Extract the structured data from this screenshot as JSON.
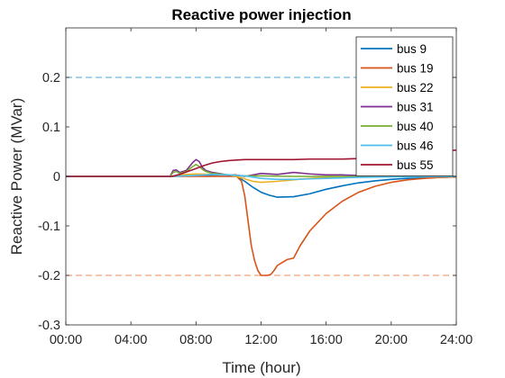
{
  "chart_data": {
    "type": "line",
    "title": "Reactive power injection",
    "xlabel": "Time (hour)",
    "ylabel": "Reactive Power (MVar)",
    "xlim": [
      0,
      24
    ],
    "ylim": [
      -0.3,
      0.3
    ],
    "xticks": [
      0,
      4,
      8,
      12,
      16,
      20,
      24
    ],
    "xtick_labels": [
      "00:00",
      "04:00",
      "08:00",
      "12:00",
      "16:00",
      "20:00",
      "24:00"
    ],
    "yticks": [
      -0.3,
      -0.2,
      -0.1,
      0,
      0.1,
      0.2
    ],
    "ytick_labels": [
      "-0.3",
      "-0.2",
      "-0.1",
      "0",
      "0.1",
      "0.2"
    ],
    "grid": false,
    "legend_position": "top-right",
    "limit_lines": [
      {
        "y": 0.2,
        "color": "#6fb9dc",
        "style": "dashed"
      },
      {
        "y": -0.2,
        "color": "#f2a27a",
        "style": "dashed"
      }
    ],
    "series": [
      {
        "name": "bus 9",
        "color": "#0072bd",
        "x": [
          0,
          6.5,
          8,
          10,
          10.5,
          11,
          11.5,
          12,
          12.5,
          13,
          14,
          15,
          16,
          17,
          18,
          19,
          20,
          21,
          22,
          23,
          24
        ],
        "y": [
          0,
          0,
          0.002,
          0.003,
          0,
          -0.01,
          -0.022,
          -0.032,
          -0.038,
          -0.042,
          -0.041,
          -0.035,
          -0.026,
          -0.019,
          -0.013,
          -0.009,
          -0.006,
          -0.004,
          -0.003,
          -0.002,
          -0.001
        ]
      },
      {
        "name": "bus 19",
        "color": "#d95319",
        "x": [
          0,
          6.5,
          10.5,
          10.8,
          11,
          11.2,
          11.4,
          11.6,
          11.8,
          12,
          12.4,
          12.6,
          12.8,
          13,
          13.4,
          13.6,
          14,
          14.4,
          15,
          16,
          17,
          18,
          19,
          20,
          21,
          22,
          23,
          24
        ],
        "y": [
          0,
          0,
          0,
          -0.01,
          -0.04,
          -0.09,
          -0.14,
          -0.17,
          -0.19,
          -0.2,
          -0.2,
          -0.198,
          -0.19,
          -0.18,
          -0.172,
          -0.168,
          -0.165,
          -0.14,
          -0.11,
          -0.075,
          -0.05,
          -0.032,
          -0.02,
          -0.012,
          -0.007,
          -0.004,
          -0.002,
          -0.001
        ]
      },
      {
        "name": "bus 22",
        "color": "#edb120",
        "x": [
          0,
          6.5,
          7,
          8,
          9,
          10,
          10.5,
          11,
          11.5,
          12,
          13,
          14,
          15,
          16,
          20,
          24
        ],
        "y": [
          0,
          0,
          0.003,
          0.005,
          0.004,
          0.003,
          0,
          -0.005,
          -0.01,
          -0.012,
          -0.01,
          -0.007,
          -0.004,
          -0.002,
          0,
          0
        ]
      },
      {
        "name": "bus 31",
        "color": "#7e2f8e",
        "x": [
          0,
          6.4,
          6.6,
          6.8,
          7,
          7.4,
          7.6,
          7.8,
          8,
          8.2,
          8.4,
          8.6,
          9,
          9.6,
          10,
          10.4,
          10.6,
          11,
          12,
          13,
          14,
          15,
          16,
          17,
          18,
          19,
          24
        ],
        "y": [
          0,
          0,
          0.012,
          0.013,
          0.008,
          0.012,
          0.02,
          0.028,
          0.034,
          0.03,
          0.018,
          0.012,
          0.008,
          0.005,
          0.002,
          0.003,
          0.002,
          0,
          0.006,
          0.004,
          0.008,
          0.005,
          0.003,
          0.003,
          0.002,
          0.003,
          0
        ]
      },
      {
        "name": "bus 40",
        "color": "#77ac30",
        "x": [
          0,
          6.4,
          6.6,
          6.8,
          7,
          7.4,
          7.6,
          7.8,
          8,
          8.2,
          8.4,
          8.6,
          9,
          10,
          10.5,
          11,
          12,
          14,
          16,
          20,
          24
        ],
        "y": [
          0,
          0,
          0.008,
          0.01,
          0.006,
          0.01,
          0.015,
          0.02,
          0.024,
          0.02,
          0.014,
          0.01,
          0.006,
          0.003,
          0.002,
          0.001,
          0.001,
          0,
          0,
          0,
          0
        ]
      },
      {
        "name": "bus 46",
        "color": "#4dbeee",
        "x": [
          0,
          6.5,
          8,
          9,
          10,
          11,
          12,
          13,
          14,
          15,
          16,
          17,
          18,
          20,
          24
        ],
        "y": [
          0,
          0,
          0.002,
          0.004,
          0.003,
          0.001,
          -0.004,
          -0.006,
          -0.006,
          -0.005,
          -0.004,
          -0.003,
          -0.002,
          -0.001,
          0
        ]
      },
      {
        "name": "bus 55",
        "color": "#a2142f",
        "x": [
          0,
          6.5,
          7,
          7.5,
          8,
          8.5,
          9,
          9.5,
          10,
          10.5,
          11,
          12,
          13,
          14,
          15,
          16,
          17,
          18,
          19,
          20,
          21,
          22,
          23,
          24
        ],
        "y": [
          0,
          0,
          0.004,
          0.01,
          0.016,
          0.022,
          0.027,
          0.03,
          0.032,
          0.033,
          0.034,
          0.034,
          0.034,
          0.034,
          0.035,
          0.035,
          0.035,
          0.036,
          0.037,
          0.04,
          0.044,
          0.048,
          0.051,
          0.053
        ]
      }
    ]
  }
}
